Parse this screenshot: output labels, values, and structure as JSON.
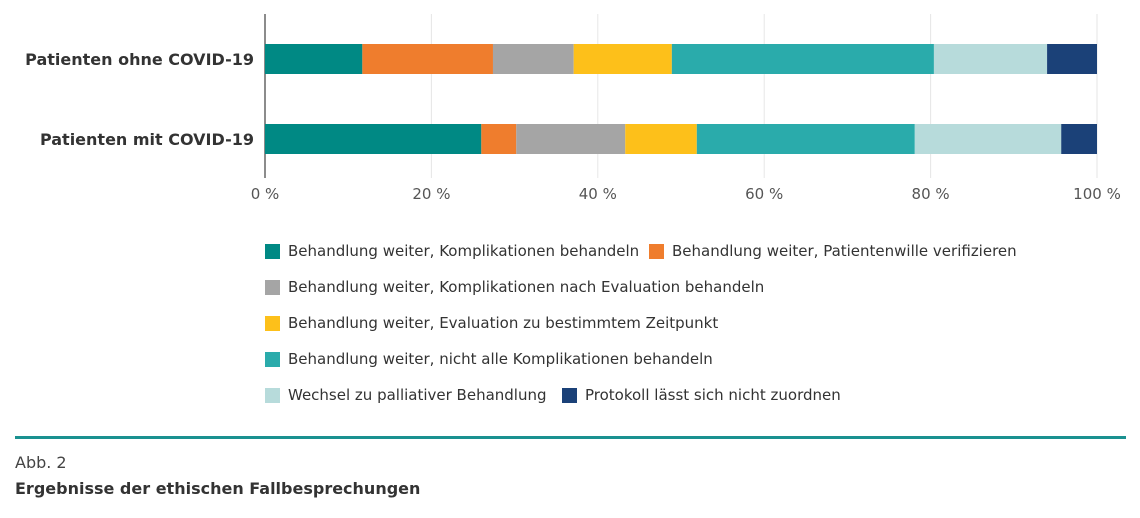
{
  "chart_data": {
    "type": "bar",
    "orientation": "horizontal",
    "stacked": true,
    "categories": [
      "Patienten ohne COVID-19",
      "Patienten mit COVID-19"
    ],
    "xlim": [
      0,
      100
    ],
    "xticks": [
      "0 %",
      "20 %",
      "40 %",
      "60 %",
      "80 %",
      "100 %"
    ],
    "grid": true,
    "legend_position": "bottom",
    "series": [
      {
        "name": "Behandlung weiter, Komplikationen behandeln",
        "color": "#008984",
        "values": [
          11.7,
          26.0
        ]
      },
      {
        "name": "Behandlung weiter, Patientenwille verifizieren",
        "color": "#ef7d2d",
        "values": [
          15.7,
          4.2
        ]
      },
      {
        "name": "Behandlung weiter, Komplikationen nach Evaluation behandeln",
        "color": "#a5a5a5",
        "values": [
          9.7,
          13.1
        ]
      },
      {
        "name": "Behandlung weiter, Evaluation zu bestimmtem Zeitpunkt",
        "color": "#fdc01a",
        "values": [
          11.8,
          8.6
        ]
      },
      {
        "name": "Behandlung weiter, nicht alle Komplikationen behandeln",
        "color": "#2aabab",
        "values": [
          31.5,
          26.2
        ]
      },
      {
        "name": "Wechsel zu palliativer Behandlung",
        "color": "#b7dbdb",
        "values": [
          13.6,
          17.6
        ]
      },
      {
        "name": "Protokoll lässt sich nicht zuordnen",
        "color": "#1b4178",
        "values": [
          6.0,
          4.3
        ]
      }
    ]
  },
  "caption": {
    "label": "Abb. 2",
    "title": "Ergebnisse der ethischen Fallbesprechungen"
  }
}
